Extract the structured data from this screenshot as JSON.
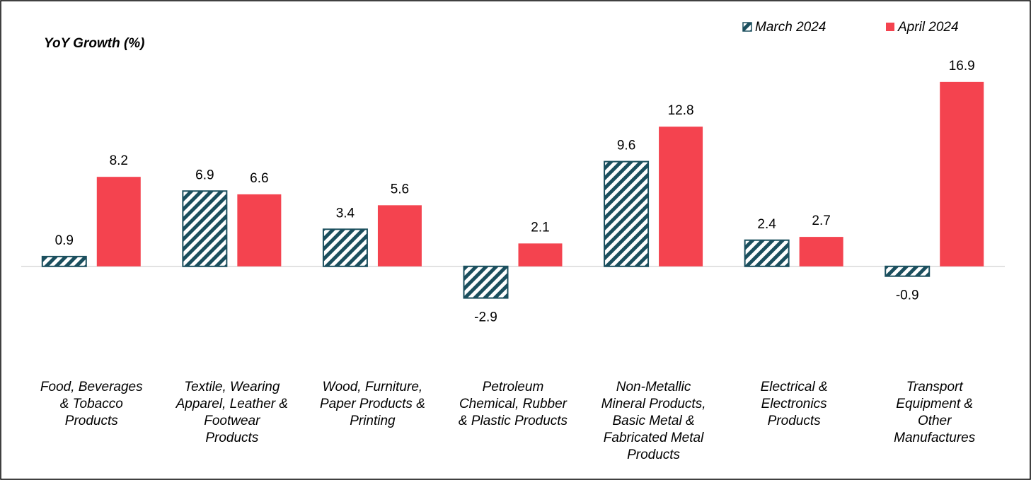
{
  "chart_data": {
    "type": "bar",
    "title": "YoY Growth (%)",
    "categories": [
      "Food, Beverages\n& Tobacco\nProducts",
      "Textile, Wearing\nApparel, Leather &\nFootwear\nProducts",
      "Wood, Furniture,\nPaper Products &\nPrinting",
      "Petroleum\nChemical, Rubber\n& Plastic Products",
      "Non-Metallic\nMineral Products,\nBasic Metal &\nFabricated Metal\nProducts",
      "Electrical &\nElectronics\nProducts",
      "Transport\nEquipment &\nOther\nManufactures"
    ],
    "series": [
      {
        "name": "March 2024",
        "color": "#1b4f5e",
        "pattern": "hatch",
        "values": [
          0.9,
          6.9,
          3.4,
          -2.9,
          9.6,
          2.4,
          -0.9
        ]
      },
      {
        "name": "April 2024",
        "color": "#f4434f",
        "values": [
          8.2,
          6.6,
          5.6,
          2.1,
          12.8,
          2.7,
          16.9
        ]
      }
    ],
    "ylim": [
      -5,
      20
    ],
    "legend": "top-right",
    "grid": false
  }
}
